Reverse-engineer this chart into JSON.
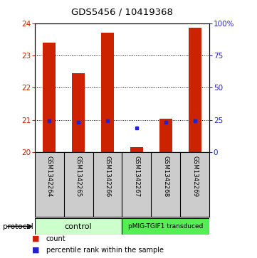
{
  "title": "GDS5456 / 10419368",
  "samples": [
    "GSM1342264",
    "GSM1342265",
    "GSM1342266",
    "GSM1342267",
    "GSM1342268",
    "GSM1342269"
  ],
  "bar_values": [
    23.4,
    22.45,
    23.7,
    20.15,
    21.05,
    23.85
  ],
  "percentile_values": [
    20.97,
    20.93,
    20.97,
    20.75,
    20.93,
    20.97
  ],
  "bar_base": 20.0,
  "ylim": [
    20.0,
    24.0
  ],
  "left_yticks": [
    20,
    21,
    22,
    23,
    24
  ],
  "right_yticks": [
    0,
    25,
    50,
    75,
    100
  ],
  "right_ylim": [
    0,
    100
  ],
  "bar_color": "#cc2200",
  "dot_color": "#2222cc",
  "bg_color": "#ffffff",
  "label_color_left": "#cc2200",
  "label_color_right": "#2222cc",
  "control_label": "control",
  "transduced_label": "pMIG-TGIF1 transduced",
  "control_color": "#ccffcc",
  "transduced_color": "#55ee55",
  "protocol_label": "protocol",
  "legend_count": "count",
  "legend_percentile": "percentile rank within the sample",
  "bar_width": 0.45,
  "label_box_color": "#cccccc",
  "grid_ticks": [
    21,
    22,
    23
  ]
}
